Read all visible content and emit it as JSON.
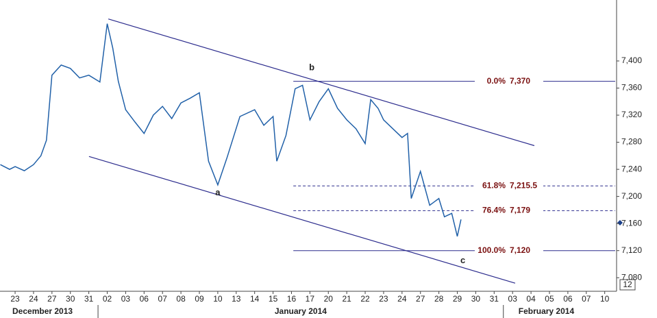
{
  "chart_data": {
    "type": "line",
    "categories": [
      "23",
      "24",
      "27",
      "30",
      "31",
      "02",
      "03",
      "06",
      "07",
      "08",
      "09",
      "10",
      "13",
      "14",
      "15",
      "16",
      "17",
      "20",
      "21",
      "22",
      "23",
      "24",
      "27",
      "28",
      "29",
      "30",
      "31",
      "03",
      "04",
      "05",
      "06",
      "07",
      "10"
    ],
    "months": [
      "December 2013",
      "January 2014",
      "February 2014"
    ],
    "series": [
      {
        "color": "#2060a8",
        "x": [
          -0.8,
          -0.3,
          0,
          0.5,
          1,
          1.4,
          1.7,
          2,
          2.5,
          3,
          3.5,
          4,
          4.6,
          5,
          5.3,
          5.6,
          6,
          6.5,
          7,
          7.5,
          8,
          8.5,
          9,
          9.5,
          10,
          10.5,
          11,
          11.5,
          12.2,
          13,
          13.5,
          14,
          14.2,
          14.7,
          15.2,
          15.6,
          16,
          16.5,
          17,
          17.5,
          18,
          18.5,
          19,
          19.3,
          19.7,
          20,
          20.5,
          21,
          21.3,
          21.5,
          22,
          22.5,
          23,
          23.3,
          23.7,
          24,
          24.2
        ],
        "values": [
          7247,
          7240,
          7244,
          7238,
          7247,
          7260,
          7283,
          7379,
          7394,
          7389,
          7375,
          7379,
          7369,
          7455,
          7419,
          7370,
          7328,
          7310,
          7293,
          7320,
          7333,
          7315,
          7338,
          7345,
          7353,
          7252,
          7217,
          7257,
          7318,
          7328,
          7305,
          7318,
          7252,
          7290,
          7359,
          7364,
          7313,
          7340,
          7359,
          7330,
          7313,
          7300,
          7278,
          7343,
          7330,
          7313,
          7300,
          7287,
          7293,
          7197,
          7237,
          7187,
          7197,
          7170,
          7175,
          7141,
          7166
        ]
      }
    ],
    "trendlines": [
      {
        "x": [
          5.06,
          28.18
        ],
        "values": [
          7462,
          7275
        ]
      },
      {
        "x": [
          4.01,
          27.14
        ],
        "values": [
          7259,
          7072
        ]
      }
    ],
    "fib_start": 15.1,
    "fib_levels": [
      {
        "value": 7370,
        "pct": "0.0%",
        "label": "7,370",
        "dashed": false
      },
      {
        "value": 7215.5,
        "pct": "61.8%",
        "label": "7,215.5",
        "dashed": true
      },
      {
        "value": 7179,
        "pct": "76.4%",
        "label": "7,179",
        "dashed": true
      },
      {
        "value": 7120,
        "pct": "100.0%",
        "label": "7,120",
        "dashed": false
      }
    ],
    "waves": [
      {
        "label": "a",
        "x": 11,
        "y": 7205
      },
      {
        "label": "b",
        "x": 16.1,
        "y": 7390
      },
      {
        "label": "c",
        "x": 24.3,
        "y": 7105
      }
    ],
    "badge": "12",
    "xlim": [
      -0.82,
      32.57
    ],
    "ylim": [
      7060,
      7490
    ],
    "yticks": [
      {
        "value": 7080,
        "label": "7,080"
      },
      {
        "value": 7120,
        "label": "7,120"
      },
      {
        "value": 7160,
        "label": "7,160"
      },
      {
        "value": 7200,
        "label": "7,200"
      },
      {
        "value": 7240,
        "label": "7,240"
      },
      {
        "value": 7280,
        "label": "7,280"
      },
      {
        "value": 7320,
        "label": "7,320"
      },
      {
        "value": 7360,
        "label": "7,360"
      },
      {
        "value": 7400,
        "label": "7,400"
      }
    ]
  }
}
